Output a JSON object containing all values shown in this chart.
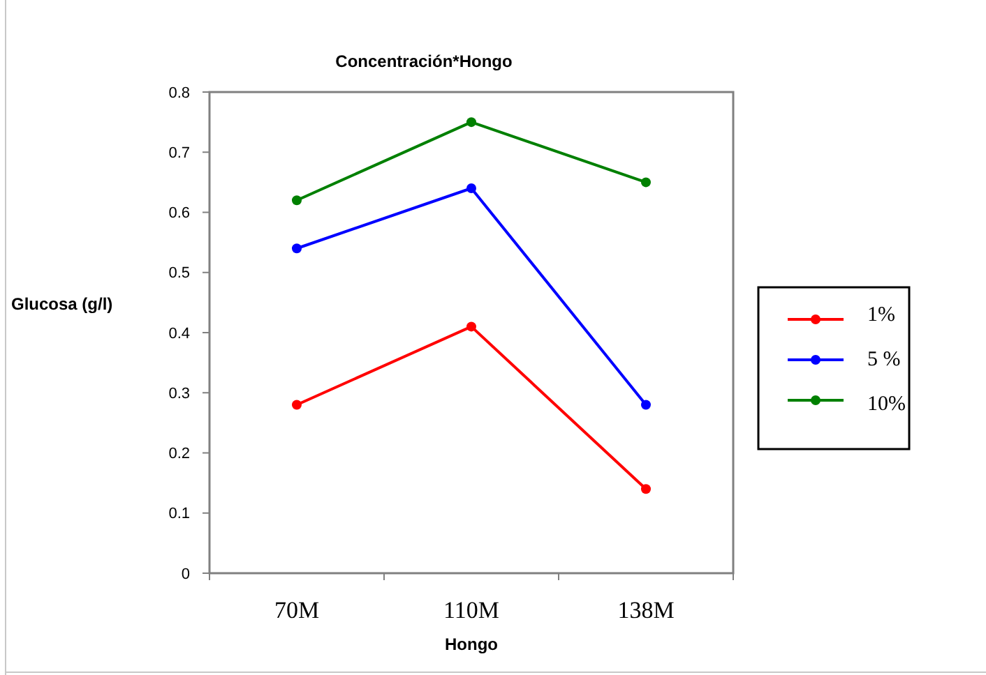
{
  "chart_data": {
    "type": "line",
    "title": "Concentración*Hongo",
    "xlabel": "Hongo",
    "ylabel": "Glucosa (g/l)",
    "categories": [
      "70M",
      "110M",
      "138M"
    ],
    "series": [
      {
        "name": "1%",
        "color": "#ff0000",
        "values": [
          0.28,
          0.41,
          0.14
        ]
      },
      {
        "name": "5 %",
        "color": "#0000ff",
        "values": [
          0.54,
          0.64,
          0.28
        ]
      },
      {
        "name": "10%",
        "color": "#008000",
        "values": [
          0.62,
          0.75,
          0.65
        ]
      }
    ],
    "ylim": [
      0,
      0.8
    ],
    "yticks": [
      0,
      0.1,
      0.2,
      0.3,
      0.4,
      0.5,
      0.6,
      0.7,
      0.8
    ],
    "grid": false,
    "legend": "right",
    "marker": "circle",
    "line_style": "solid"
  }
}
